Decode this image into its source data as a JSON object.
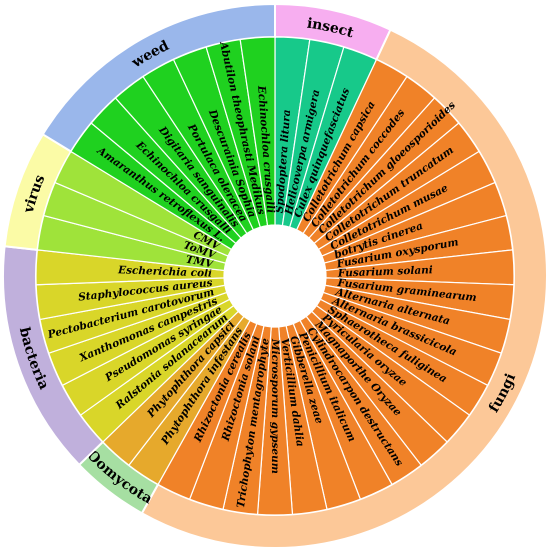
{
  "groups": [
    {
      "name": "insect",
      "ring_color": "#f7aef0",
      "sector_color": "#17c98a",
      "items": [
        "Spodoptera litura",
        "Helicoverpa armigera",
        "Culex quinquefasciatus"
      ]
    },
    {
      "name": "fungi",
      "ring_color": "#fcc898",
      "sector_color": "#f08228",
      "items": [
        "Colletotrichum capsica",
        "Colletotrichum coccodes",
        "Colletotrichum gloeosporioides",
        "Colletotrichum truncatum",
        "Colletotrichum musae",
        "botrytis cinerea",
        "Fusarium oxysporum",
        "Fusarium solani",
        "Fusarium graminearum",
        "Alternaria alternata",
        "Alternaria brassicicola",
        "Sphaerotheca fuliginea",
        "Pyricularia oryzae",
        "Magnaporthe Oryzae",
        "Cylindrocarpon destructans",
        "Penicillium italicum",
        "Gibberella zeae",
        "Verticillium dahlia",
        "Microsporum gypseum",
        "Trichophyton mentagrophyte",
        "Rhizoctonia solani",
        "Rhizoctonia cerealis"
      ]
    },
    {
      "name": "Oomycota",
      "ring_color": "#a6dfa2",
      "sector_color": "#e6a92c",
      "items": [
        "Phytophthora infestans",
        "Phytophthora capsici"
      ]
    },
    {
      "name": "bacteria",
      "ring_color": "#c0b0dc",
      "sector_color": "#d9d629",
      "items": [
        "Ralstonia solanacearum",
        "Pseudomonas syringae",
        "Xanthomonas campestris",
        "Pectobacterium carotovorum",
        "Staphylococcus aureus",
        "Escherichia coli"
      ]
    },
    {
      "name": "virus",
      "ring_color": "#fbfba6",
      "sector_color": "#9fe33a",
      "items": [
        "TMV",
        "ToMV",
        "CMV"
      ]
    },
    {
      "name": "weed",
      "ring_color": "#9ab7eb",
      "sector_color": "#1fd11f",
      "items": [
        "Amaranthus retroflexus L.",
        "Echinochloa crusgalli",
        "Digitaria sanguinalis",
        "Portulaca oleracea",
        "Descurainia Sophia",
        "Abutilon theophrasti Medikus",
        "Echinochloa crusgalli"
      ]
    }
  ]
}
